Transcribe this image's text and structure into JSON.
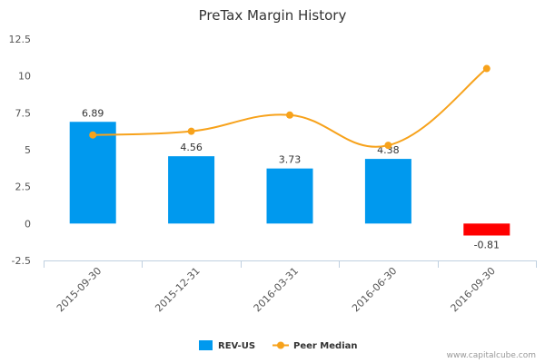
{
  "chart_data": {
    "type": "bar",
    "title": "PreTax Margin History",
    "categories": [
      "2015-09-30",
      "2015-12-31",
      "2016-03-31",
      "2016-06-30",
      "2016-09-30"
    ],
    "y_ticks": [
      "12.5",
      "10",
      "7.5",
      "5",
      "2.5",
      "0",
      "-2.5"
    ],
    "ylim": [
      -2.5,
      12.5
    ],
    "grid": false,
    "legend_position": "bottom-center",
    "series": [
      {
        "name": "REV-US",
        "type": "bar",
        "values": [
          6.89,
          4.56,
          3.73,
          4.38,
          -0.81
        ],
        "labels": [
          "6.89",
          "4.56",
          "3.73",
          "4.38",
          "-0.81"
        ],
        "color": "#0099ee",
        "negative_color": "#ff0000"
      },
      {
        "name": "Peer Median",
        "type": "line",
        "values": [
          6.0,
          6.25,
          7.35,
          5.3,
          10.5
        ],
        "color": "#f7a21b"
      }
    ]
  },
  "footer": {
    "credit": "www.capitalcube.com"
  }
}
